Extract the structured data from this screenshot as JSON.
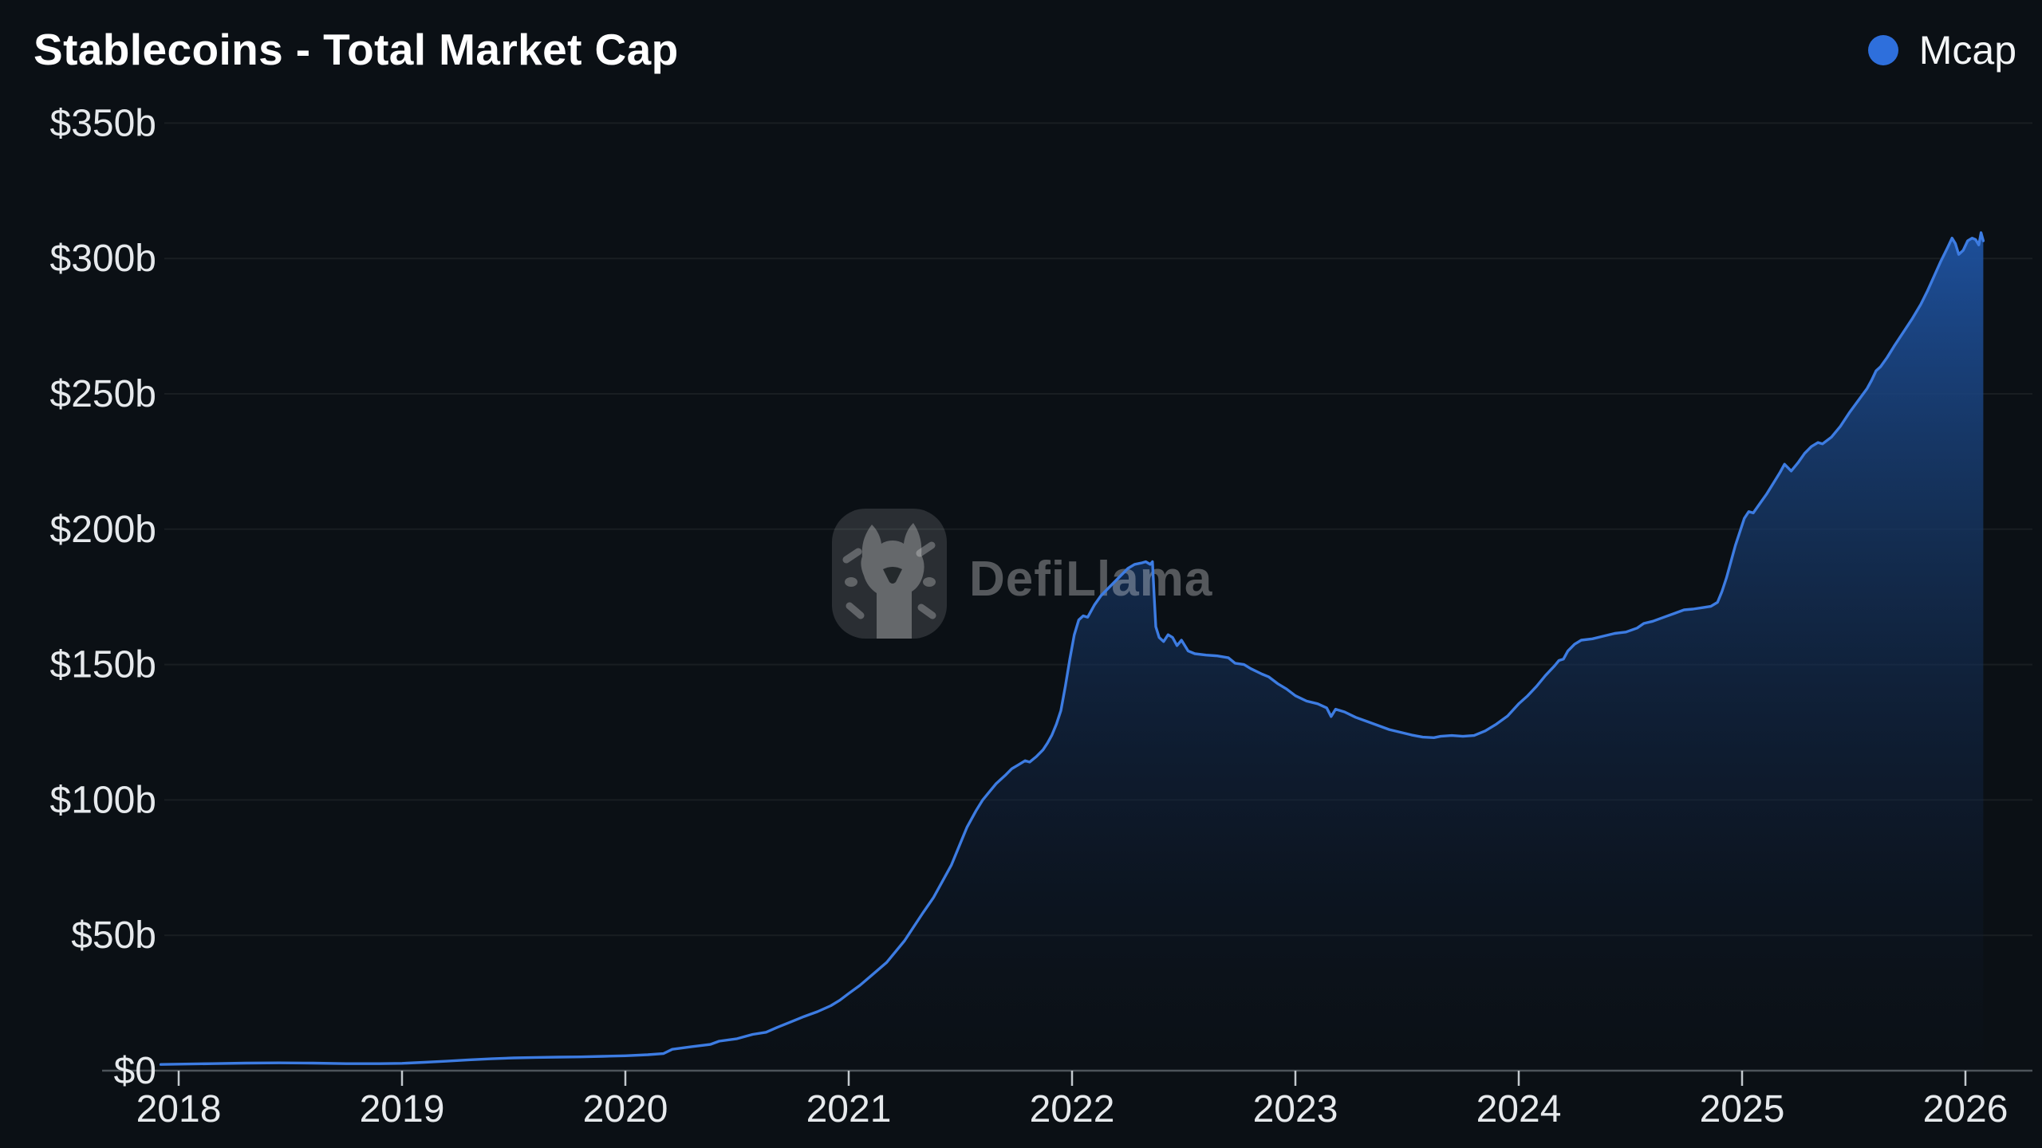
{
  "header": {
    "title": "Stablecoins - Total Market Cap"
  },
  "legend": {
    "label": "Mcap",
    "dot_color": "#2e6fdc"
  },
  "watermark": {
    "text": "DefiLlama"
  },
  "colors": {
    "background": "#0b1015",
    "line": "#3d7ce2",
    "fill_top": "#1e52a0",
    "fill_mid": "#152f58",
    "fill_bottom": "#0c1524",
    "grid": "#171e24",
    "axis": "#4d545a",
    "label": "#e6e9ec"
  },
  "chart_data": {
    "type": "area",
    "title": "Stablecoins - Total Market Cap",
    "xlabel": "",
    "ylabel": "",
    "unit": "USD billions",
    "ylim": [
      0,
      350
    ],
    "xlim": [
      2017.92,
      2026.3
    ],
    "grid": "horizontal",
    "legend_position": "top-right",
    "x_ticks": [
      2018,
      2019,
      2020,
      2021,
      2022,
      2023,
      2024,
      2025,
      2026
    ],
    "y_ticks": [
      {
        "value": 0,
        "label": "$0"
      },
      {
        "value": 50,
        "label": "$50b"
      },
      {
        "value": 100,
        "label": "$100b"
      },
      {
        "value": 150,
        "label": "$150b"
      },
      {
        "value": 200,
        "label": "$200b"
      },
      {
        "value": 250,
        "label": "$250b"
      },
      {
        "value": 300,
        "label": "$300b"
      },
      {
        "value": 350,
        "label": "$350b"
      }
    ],
    "series": [
      {
        "name": "Mcap",
        "color": "#3d7ce2",
        "points": [
          [
            2017.92,
            2.3
          ],
          [
            2018.0,
            2.4
          ],
          [
            2018.15,
            2.6
          ],
          [
            2018.3,
            2.8
          ],
          [
            2018.45,
            2.9
          ],
          [
            2018.6,
            2.8
          ],
          [
            2018.75,
            2.6
          ],
          [
            2018.9,
            2.6
          ],
          [
            2019.0,
            2.7
          ],
          [
            2019.1,
            3.1
          ],
          [
            2019.2,
            3.5
          ],
          [
            2019.3,
            4.0
          ],
          [
            2019.4,
            4.4
          ],
          [
            2019.5,
            4.7
          ],
          [
            2019.6,
            4.9
          ],
          [
            2019.7,
            5.0
          ],
          [
            2019.8,
            5.1
          ],
          [
            2019.9,
            5.3
          ],
          [
            2020.0,
            5.5
          ],
          [
            2020.1,
            5.9
          ],
          [
            2020.17,
            6.3
          ],
          [
            2020.21,
            7.9
          ],
          [
            2020.3,
            8.9
          ],
          [
            2020.38,
            9.7
          ],
          [
            2020.42,
            10.9
          ],
          [
            2020.5,
            11.8
          ],
          [
            2020.57,
            13.4
          ],
          [
            2020.63,
            14.2
          ],
          [
            2020.68,
            16.0
          ],
          [
            2020.74,
            18.0
          ],
          [
            2020.8,
            20.0
          ],
          [
            2020.86,
            21.8
          ],
          [
            2020.92,
            24.0
          ],
          [
            2020.96,
            26.0
          ],
          [
            2021.0,
            28.5
          ],
          [
            2021.05,
            31.5
          ],
          [
            2021.1,
            35.0
          ],
          [
            2021.17,
            40.0
          ],
          [
            2021.25,
            48.0
          ],
          [
            2021.33,
            58.0
          ],
          [
            2021.38,
            64.0
          ],
          [
            2021.42,
            70.0
          ],
          [
            2021.46,
            76.0
          ],
          [
            2021.5,
            84.0
          ],
          [
            2021.53,
            90.0
          ],
          [
            2021.57,
            96.0
          ],
          [
            2021.6,
            100.0
          ],
          [
            2021.63,
            103.0
          ],
          [
            2021.66,
            106.0
          ],
          [
            2021.7,
            109.0
          ],
          [
            2021.73,
            111.5
          ],
          [
            2021.76,
            113.0
          ],
          [
            2021.79,
            114.5
          ],
          [
            2021.81,
            114.0
          ],
          [
            2021.84,
            116.0
          ],
          [
            2021.87,
            118.5
          ],
          [
            2021.89,
            121.0
          ],
          [
            2021.91,
            124.0
          ],
          [
            2021.93,
            128.0
          ],
          [
            2021.95,
            133.0
          ],
          [
            2021.97,
            142.0
          ],
          [
            2021.99,
            152.0
          ],
          [
            2022.01,
            161.0
          ],
          [
            2022.03,
            166.5
          ],
          [
            2022.05,
            168.0
          ],
          [
            2022.07,
            167.5
          ],
          [
            2022.1,
            172.0
          ],
          [
            2022.13,
            175.5
          ],
          [
            2022.16,
            178.0
          ],
          [
            2022.19,
            180.5
          ],
          [
            2022.22,
            183.0
          ],
          [
            2022.25,
            185.5
          ],
          [
            2022.28,
            187.0
          ],
          [
            2022.31,
            187.5
          ],
          [
            2022.33,
            188.0
          ],
          [
            2022.35,
            187.0
          ],
          [
            2022.36,
            188.0
          ],
          [
            2022.368,
            175.0
          ],
          [
            2022.375,
            164.0
          ],
          [
            2022.39,
            160.0
          ],
          [
            2022.41,
            158.5
          ],
          [
            2022.43,
            161.0
          ],
          [
            2022.45,
            160.0
          ],
          [
            2022.47,
            157.0
          ],
          [
            2022.49,
            159.0
          ],
          [
            2022.52,
            155.0
          ],
          [
            2022.55,
            154.0
          ],
          [
            2022.6,
            153.5
          ],
          [
            2022.65,
            153.2
          ],
          [
            2022.7,
            152.5
          ],
          [
            2022.73,
            150.5
          ],
          [
            2022.77,
            150.0
          ],
          [
            2022.8,
            148.5
          ],
          [
            2022.85,
            146.5
          ],
          [
            2022.88,
            145.5
          ],
          [
            2022.92,
            143.0
          ],
          [
            2022.96,
            141.0
          ],
          [
            2023.0,
            138.5
          ],
          [
            2023.05,
            136.5
          ],
          [
            2023.1,
            135.5
          ],
          [
            2023.14,
            134.0
          ],
          [
            2023.16,
            130.8
          ],
          [
            2023.18,
            133.5
          ],
          [
            2023.22,
            132.5
          ],
          [
            2023.27,
            130.5
          ],
          [
            2023.32,
            129.0
          ],
          [
            2023.37,
            127.5
          ],
          [
            2023.42,
            126.0
          ],
          [
            2023.47,
            125.0
          ],
          [
            2023.52,
            124.0
          ],
          [
            2023.57,
            123.2
          ],
          [
            2023.62,
            123.0
          ],
          [
            2023.65,
            123.5
          ],
          [
            2023.7,
            123.8
          ],
          [
            2023.75,
            123.5
          ],
          [
            2023.8,
            123.8
          ],
          [
            2023.85,
            125.5
          ],
          [
            2023.9,
            128.0
          ],
          [
            2023.95,
            131.0
          ],
          [
            2024.0,
            135.5
          ],
          [
            2024.04,
            138.5
          ],
          [
            2024.08,
            142.0
          ],
          [
            2024.12,
            146.0
          ],
          [
            2024.16,
            149.5
          ],
          [
            2024.18,
            151.5
          ],
          [
            2024.2,
            152.0
          ],
          [
            2024.22,
            155.0
          ],
          [
            2024.25,
            157.5
          ],
          [
            2024.28,
            159.0
          ],
          [
            2024.33,
            159.5
          ],
          [
            2024.38,
            160.5
          ],
          [
            2024.43,
            161.5
          ],
          [
            2024.48,
            162.0
          ],
          [
            2024.53,
            163.5
          ],
          [
            2024.56,
            165.2
          ],
          [
            2024.6,
            166.0
          ],
          [
            2024.65,
            167.5
          ],
          [
            2024.7,
            169.0
          ],
          [
            2024.74,
            170.2
          ],
          [
            2024.78,
            170.5
          ],
          [
            2024.82,
            171.0
          ],
          [
            2024.86,
            171.5
          ],
          [
            2024.89,
            173.0
          ],
          [
            2024.91,
            177.0
          ],
          [
            2024.93,
            182.0
          ],
          [
            2024.95,
            188.0
          ],
          [
            2024.97,
            194.0
          ],
          [
            2024.99,
            199.0
          ],
          [
            2025.01,
            204.0
          ],
          [
            2025.03,
            206.5
          ],
          [
            2025.05,
            206.0
          ],
          [
            2025.08,
            209.5
          ],
          [
            2025.11,
            213.0
          ],
          [
            2025.14,
            217.0
          ],
          [
            2025.17,
            221.0
          ],
          [
            2025.19,
            224.0
          ],
          [
            2025.22,
            221.5
          ],
          [
            2025.25,
            224.5
          ],
          [
            2025.28,
            228.0
          ],
          [
            2025.31,
            230.5
          ],
          [
            2025.34,
            232.0
          ],
          [
            2025.36,
            231.5
          ],
          [
            2025.4,
            234.0
          ],
          [
            2025.44,
            238.0
          ],
          [
            2025.48,
            243.0
          ],
          [
            2025.52,
            247.5
          ],
          [
            2025.56,
            252.0
          ],
          [
            2025.58,
            255.0
          ],
          [
            2025.6,
            258.5
          ],
          [
            2025.62,
            260.0
          ],
          [
            2025.65,
            263.5
          ],
          [
            2025.68,
            267.5
          ],
          [
            2025.72,
            272.5
          ],
          [
            2025.76,
            277.5
          ],
          [
            2025.8,
            283.0
          ],
          [
            2025.83,
            288.0
          ],
          [
            2025.86,
            293.5
          ],
          [
            2025.89,
            299.0
          ],
          [
            2025.92,
            304.0
          ],
          [
            2025.94,
            307.5
          ],
          [
            2025.955,
            305.5
          ],
          [
            2025.97,
            301.5
          ],
          [
            2025.99,
            303.0
          ],
          [
            2026.01,
            306.5
          ],
          [
            2026.03,
            307.5
          ],
          [
            2026.045,
            307.0
          ],
          [
            2026.06,
            305.0
          ],
          [
            2026.07,
            309.5
          ],
          [
            2026.08,
            306.5
          ]
        ]
      }
    ]
  }
}
